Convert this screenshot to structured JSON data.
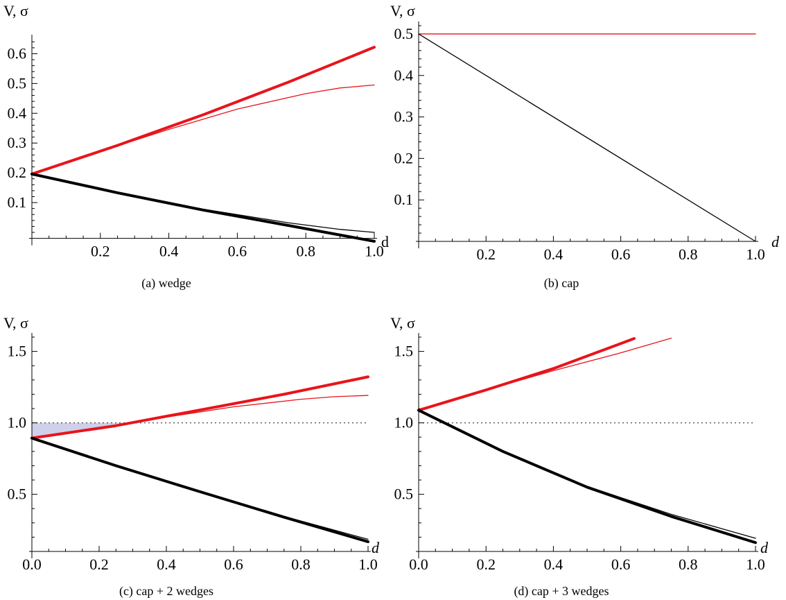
{
  "colors": {
    "red": "#e8141c",
    "black": "#000000",
    "shade": "#cfd0ea",
    "dotted": "#444444"
  },
  "chart_data": [
    {
      "type": "line",
      "caption": "(a) wedge",
      "ylabel": "V, σ",
      "xlabel": "d",
      "xlabel_style": "upright",
      "xlim": [
        0,
        1.0
      ],
      "ylim": [
        0,
        0.65
      ],
      "xticks": [
        0.2,
        0.4,
        0.6,
        0.8,
        1.0
      ],
      "xtick_labels": [
        "0.2",
        "0.4",
        "0.6",
        "0.8",
        "1.0"
      ],
      "yticks": [
        0.1,
        0.2,
        0.3,
        0.4,
        0.5,
        0.6
      ],
      "ytick_labels": [
        "0.1",
        "0.2",
        "0.3",
        "0.4",
        "0.5",
        "0.6"
      ],
      "x_axis_y": -0.02,
      "series": [
        {
          "color": "red",
          "width": "thick",
          "x": [
            0,
            0.25,
            0.5,
            0.75,
            1.0
          ],
          "y": [
            0.196,
            0.292,
            0.395,
            0.505,
            0.622
          ]
        },
        {
          "color": "red",
          "width": "thin",
          "x": [
            0,
            0.2,
            0.4,
            0.6,
            0.8,
            0.9,
            1.0
          ],
          "y": [
            0.196,
            0.272,
            0.346,
            0.414,
            0.466,
            0.485,
            0.495
          ]
        },
        {
          "color": "black",
          "width": "thick",
          "x": [
            0,
            0.25,
            0.5,
            0.75,
            1.0
          ],
          "y": [
            0.196,
            0.133,
            0.075,
            0.023,
            -0.03
          ]
        },
        {
          "color": "black",
          "width": "thin",
          "x": [
            0,
            0.25,
            0.5,
            0.75,
            0.9,
            1.0
          ],
          "y": [
            0.196,
            0.134,
            0.078,
            0.032,
            0.01,
            0.0
          ]
        }
      ]
    },
    {
      "type": "line",
      "caption": "(b) cap",
      "ylabel": "V, σ",
      "xlabel": "d",
      "xlabel_style": "italic",
      "xlim": [
        0,
        1.0
      ],
      "ylim": [
        0,
        0.52
      ],
      "xticks": [
        0.2,
        0.4,
        0.6,
        0.8,
        1.0
      ],
      "xtick_labels": [
        "0.2",
        "0.4",
        "0.6",
        "0.8",
        "1.0"
      ],
      "yticks": [
        0.1,
        0.2,
        0.3,
        0.4,
        0.5
      ],
      "ytick_labels": [
        "0.1",
        "0.2",
        "0.3",
        "0.4",
        "0.5"
      ],
      "x_axis_y": 0,
      "series": [
        {
          "color": "red",
          "width": "thin",
          "x": [
            0,
            1.0
          ],
          "y": [
            0.5,
            0.5
          ]
        },
        {
          "color": "black",
          "width": "thin",
          "x": [
            0,
            1.0
          ],
          "y": [
            0.5,
            0.0
          ]
        }
      ]
    },
    {
      "type": "line",
      "caption": "(c) cap + 2 wedges",
      "ylabel": "V, σ",
      "xlabel": "d",
      "xlabel_style": "italic",
      "xlim": [
        0,
        1.0
      ],
      "ylim": [
        0.1,
        1.6
      ],
      "xticks": [
        0.0,
        0.2,
        0.4,
        0.6,
        0.8,
        1.0
      ],
      "xtick_labels": [
        "0.0",
        "0.2",
        "0.4",
        "0.6",
        "0.8",
        "1.0"
      ],
      "yticks": [
        0.5,
        1.0,
        1.5
      ],
      "ytick_labels": [
        "0.5",
        "1.0",
        "1.5"
      ],
      "x_axis_y": 0.1,
      "dotted_y": 1.0,
      "shade": {
        "from_x": 0,
        "to_x": 0.3,
        "top": 1.0
      },
      "series": [
        {
          "color": "red",
          "width": "thick",
          "x": [
            0,
            0.25,
            0.5,
            0.75,
            1.0
          ],
          "y": [
            0.893,
            0.98,
            1.09,
            1.2,
            1.322
          ]
        },
        {
          "color": "red",
          "width": "thin",
          "x": [
            0,
            0.2,
            0.4,
            0.6,
            0.8,
            0.9,
            1.0
          ],
          "y": [
            0.893,
            0.963,
            1.04,
            1.112,
            1.165,
            1.183,
            1.192
          ]
        },
        {
          "color": "black",
          "width": "thick",
          "x": [
            0,
            0.25,
            0.5,
            0.75,
            1.0
          ],
          "y": [
            0.893,
            0.7,
            0.518,
            0.34,
            0.168
          ]
        },
        {
          "color": "black",
          "width": "thin",
          "x": [
            0,
            0.25,
            0.5,
            0.75,
            1.0
          ],
          "y": [
            0.893,
            0.7,
            0.519,
            0.345,
            0.185
          ]
        }
      ]
    },
    {
      "type": "line",
      "caption": "(d) cap + 3 wedges",
      "ylabel": "V, σ",
      "xlabel": "d",
      "xlabel_style": "italic",
      "xlim": [
        0,
        1.0
      ],
      "ylim": [
        0.1,
        1.6
      ],
      "xticks": [
        0.0,
        0.2,
        0.4,
        0.6,
        0.8,
        1.0
      ],
      "xtick_labels": [
        "0.0",
        "0.2",
        "0.4",
        "0.6",
        "0.8",
        "1.0"
      ],
      "yticks": [
        0.5,
        1.0,
        1.5
      ],
      "ytick_labels": [
        "0.5",
        "1.0",
        "1.5"
      ],
      "x_axis_y": 0.1,
      "dotted_y": 1.0,
      "shade": {
        "from_x": 0,
        "to_x": 0.085,
        "top": 1.0
      },
      "series": [
        {
          "color": "red",
          "width": "thick",
          "x": [
            0,
            0.2,
            0.4,
            0.64
          ],
          "y": [
            1.088,
            1.23,
            1.38,
            1.59
          ]
        },
        {
          "color": "red",
          "width": "thin",
          "x": [
            0,
            0.2,
            0.4,
            0.6,
            0.75
          ],
          "y": [
            1.088,
            1.23,
            1.365,
            1.49,
            1.593
          ]
        },
        {
          "color": "black",
          "width": "thick",
          "x": [
            0,
            0.25,
            0.5,
            0.75,
            1.0
          ],
          "y": [
            1.088,
            0.8,
            0.55,
            0.345,
            0.162
          ]
        },
        {
          "color": "black",
          "width": "thin",
          "x": [
            0,
            0.25,
            0.5,
            0.75,
            1.0
          ],
          "y": [
            1.088,
            0.8,
            0.555,
            0.36,
            0.192
          ]
        }
      ]
    }
  ]
}
